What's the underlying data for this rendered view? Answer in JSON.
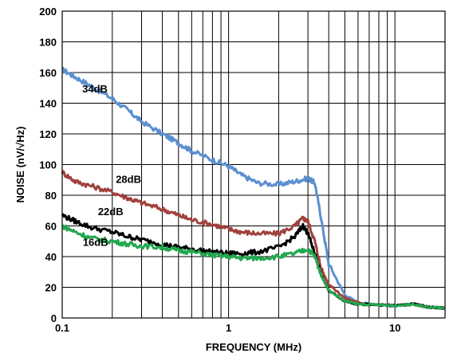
{
  "chart_data": {
    "type": "line",
    "xlabel": "FREQUENCY (MHz)",
    "ylabel": "NOISE (nV/√Hz)",
    "xscale": "log",
    "xlim": [
      0.1,
      20
    ],
    "ylim": [
      0,
      200
    ],
    "x_ticks": [
      0.1,
      1,
      10
    ],
    "x_tick_labels": [
      "0.1",
      "1",
      "10"
    ],
    "y_ticks": [
      0,
      20,
      40,
      60,
      80,
      100,
      120,
      140,
      160,
      180,
      200
    ],
    "y_tick_labels": [
      "0",
      "20",
      "40",
      "60",
      "80",
      "100",
      "120",
      "140",
      "160",
      "180",
      "200"
    ],
    "grid": true,
    "series": [
      {
        "name": "34dB",
        "color": "#5b8fd0",
        "x": [
          0.1,
          0.12,
          0.15,
          0.2,
          0.25,
          0.3,
          0.4,
          0.5,
          0.6,
          0.8,
          1.0,
          1.2,
          1.5,
          2.0,
          2.5,
          3.0,
          3.3,
          3.6,
          4.0,
          5.0,
          6.0,
          8.0,
          10.0,
          13.0,
          16.0,
          20.0
        ],
        "values": [
          162,
          157,
          151,
          143,
          135,
          128,
          120,
          114,
          109,
          103,
          99,
          93,
          88,
          87,
          89,
          91,
          88,
          65,
          35,
          15,
          10,
          8.5,
          8,
          9,
          7,
          6.5
        ]
      },
      {
        "name": "28dB",
        "color": "#a0413c",
        "x": [
          0.1,
          0.12,
          0.15,
          0.2,
          0.25,
          0.3,
          0.4,
          0.5,
          0.6,
          0.8,
          1.0,
          1.2,
          1.5,
          2.0,
          2.5,
          2.8,
          3.0,
          3.3,
          3.6,
          4.0,
          5.0,
          6.0,
          8.0,
          10.0,
          13.0,
          16.0,
          20.0
        ],
        "values": [
          95,
          89,
          86,
          82,
          78,
          75,
          71,
          67,
          64,
          61,
          58,
          56,
          55,
          55,
          60,
          65,
          63,
          50,
          32,
          22,
          13,
          10,
          8.5,
          8,
          9,
          7,
          6.5
        ]
      },
      {
        "name": "22dB",
        "color": "#000000",
        "x": [
          0.1,
          0.12,
          0.15,
          0.2,
          0.25,
          0.3,
          0.4,
          0.5,
          0.6,
          0.8,
          1.0,
          1.2,
          1.5,
          2.0,
          2.5,
          2.8,
          3.0,
          3.3,
          3.6,
          4.0,
          5.0,
          6.0,
          8.0,
          10.0,
          13.0,
          16.0,
          20.0
        ],
        "values": [
          67,
          63,
          59,
          56,
          53,
          51,
          48,
          46,
          45,
          43,
          42,
          42,
          43,
          46,
          53,
          60,
          55,
          42,
          28,
          18,
          11,
          9,
          8.5,
          8,
          9,
          7,
          6.5
        ]
      },
      {
        "name": "16dB",
        "color": "#22a84e",
        "x": [
          0.1,
          0.12,
          0.15,
          0.2,
          0.25,
          0.3,
          0.4,
          0.5,
          0.6,
          0.8,
          1.0,
          1.2,
          1.5,
          2.0,
          2.5,
          3.0,
          3.3,
          3.6,
          4.0,
          5.0,
          6.0,
          8.0,
          10.0,
          13.0,
          16.0,
          20.0
        ],
        "values": [
          60,
          56,
          52,
          50,
          48,
          47,
          46,
          44,
          43,
          41,
          40,
          39,
          39,
          40,
          42,
          45,
          40,
          28,
          18,
          11,
          9,
          8.5,
          8,
          9,
          7,
          6.5
        ]
      }
    ],
    "annotations": [
      "34dB",
      "28dB",
      "22dB",
      "16dB"
    ]
  }
}
